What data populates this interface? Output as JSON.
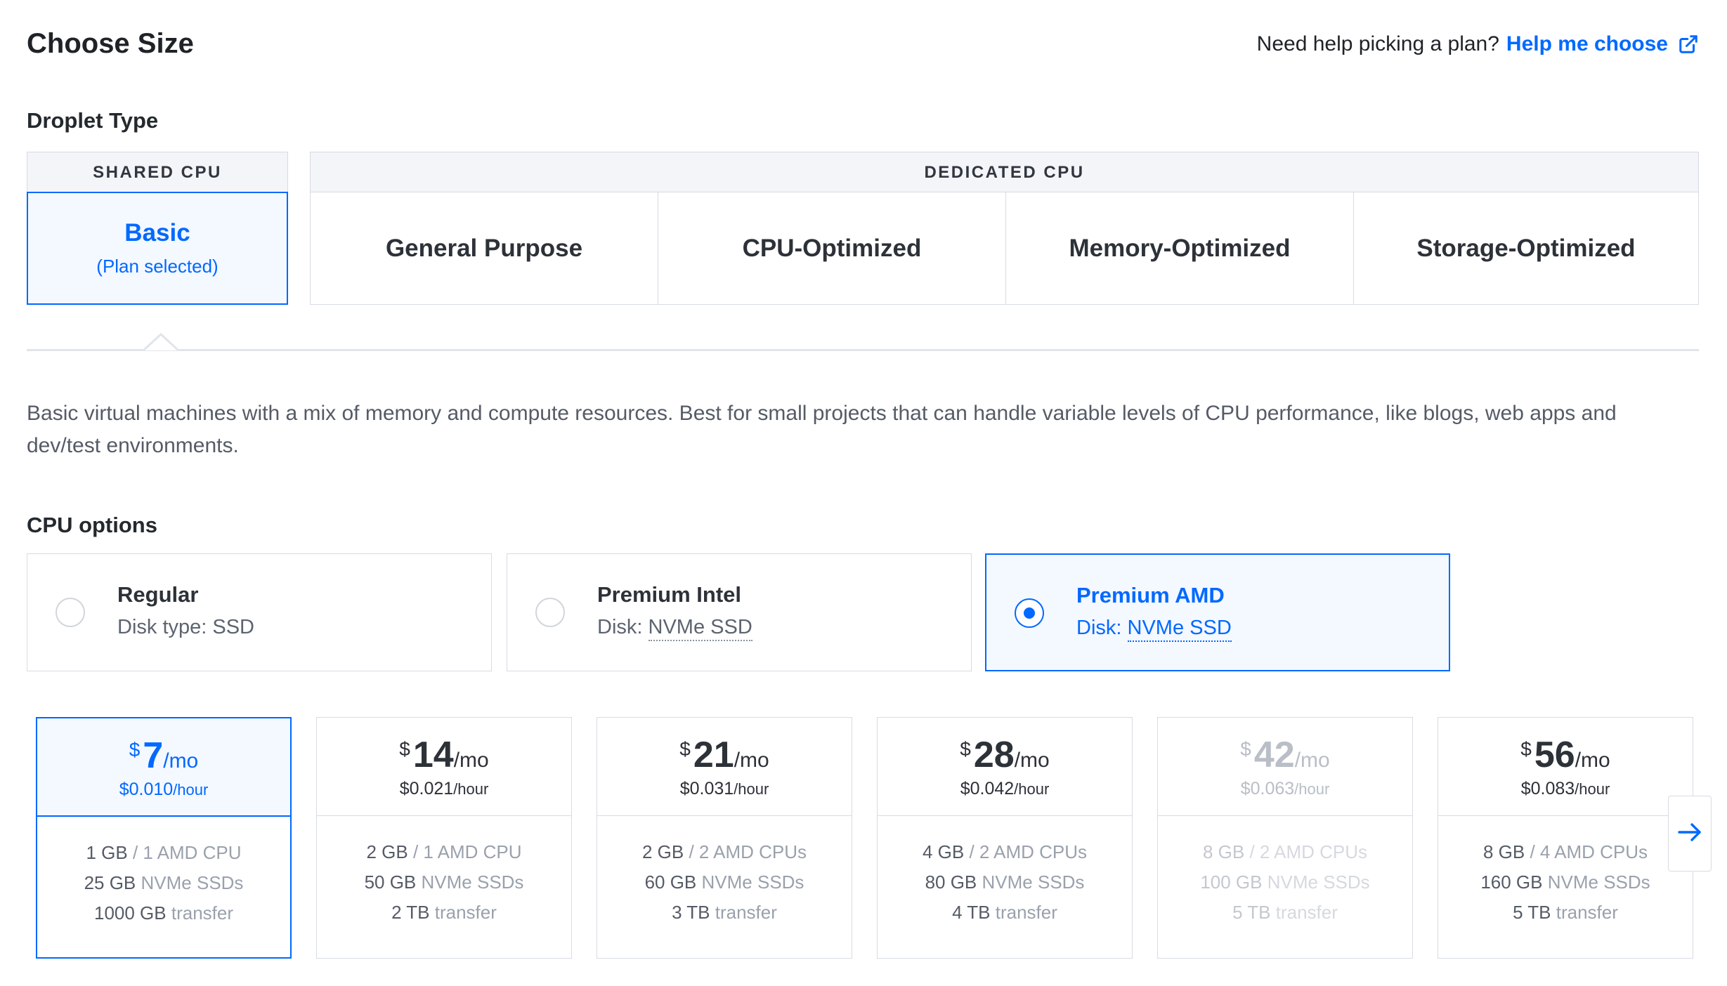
{
  "header": {
    "title": "Choose Size",
    "help_prompt": "Need help picking a plan?",
    "help_link": "Help me choose",
    "help_icon": "external-link-icon"
  },
  "droplet_type": {
    "label": "Droplet Type",
    "groups": {
      "shared": "SHARED CPU",
      "dedicated": "DEDICATED CPU"
    },
    "types": [
      {
        "label": "Basic",
        "sub": "(Plan selected)",
        "selected": true
      },
      {
        "label": "General Purpose"
      },
      {
        "label": "CPU-Optimized"
      },
      {
        "label": "Memory-Optimized"
      },
      {
        "label": "Storage-Optimized"
      }
    ],
    "description": "Basic virtual machines with a mix of memory and compute resources. Best for small projects that can handle variable levels of CPU performance, like blogs, web apps and dev/test environments."
  },
  "cpu_options": {
    "label": "CPU options",
    "options": [
      {
        "name": "Regular",
        "disk_prefix": "Disk type: SSD",
        "disk_link": "",
        "selected": false
      },
      {
        "name": "Premium Intel",
        "disk_prefix": "Disk:",
        "disk_link": "NVMe SSD",
        "selected": false
      },
      {
        "name": "Premium AMD",
        "disk_prefix": "Disk:",
        "disk_link": "NVMe SSD",
        "selected": true
      }
    ]
  },
  "plans": [
    {
      "currency": "$",
      "price": "7",
      "per": "/mo",
      "hourly": "$0.010",
      "hourly_unit": "/hour",
      "mem": "1 GB",
      "cpu": "/ 1 AMD CPU",
      "disk_amt": "25 GB",
      "disk_lbl": "NVMe SSDs",
      "transfer_amt": "1000 GB",
      "transfer_lbl": "transfer",
      "selected": true,
      "disabled": false
    },
    {
      "currency": "$",
      "price": "14",
      "per": "/mo",
      "hourly": "$0.021",
      "hourly_unit": "/hour",
      "mem": "2 GB",
      "cpu": "/ 1 AMD CPU",
      "disk_amt": "50 GB",
      "disk_lbl": "NVMe SSDs",
      "transfer_amt": "2 TB",
      "transfer_lbl": "transfer",
      "selected": false,
      "disabled": false
    },
    {
      "currency": "$",
      "price": "21",
      "per": "/mo",
      "hourly": "$0.031",
      "hourly_unit": "/hour",
      "mem": "2 GB",
      "cpu": "/ 2 AMD CPUs",
      "disk_amt": "60 GB",
      "disk_lbl": "NVMe SSDs",
      "transfer_amt": "3 TB",
      "transfer_lbl": "transfer",
      "selected": false,
      "disabled": false
    },
    {
      "currency": "$",
      "price": "28",
      "per": "/mo",
      "hourly": "$0.042",
      "hourly_unit": "/hour",
      "mem": "4 GB",
      "cpu": "/ 2 AMD CPUs",
      "disk_amt": "80 GB",
      "disk_lbl": "NVMe SSDs",
      "transfer_amt": "4 TB",
      "transfer_lbl": "transfer",
      "selected": false,
      "disabled": false
    },
    {
      "currency": "$",
      "price": "42",
      "per": "/mo",
      "hourly": "$0.063",
      "hourly_unit": "/hour",
      "mem": "8 GB",
      "cpu": "/ 2 AMD CPUs",
      "disk_amt": "100 GB",
      "disk_lbl": "NVMe SSDs",
      "transfer_amt": "5 TB",
      "transfer_lbl": "transfer",
      "selected": false,
      "disabled": true
    },
    {
      "currency": "$",
      "price": "56",
      "per": "/mo",
      "hourly": "$0.083",
      "hourly_unit": "/hour",
      "mem": "8 GB",
      "cpu": "/ 4 AMD CPUs",
      "disk_amt": "160 GB",
      "disk_lbl": "NVMe SSDs",
      "transfer_amt": "5 TB",
      "transfer_lbl": "transfer",
      "selected": false,
      "disabled": false
    }
  ],
  "nav": {
    "next_icon": "arrow-right-icon"
  },
  "colors": {
    "accent": "#0069ff",
    "border": "#d7dbe3",
    "selected_bg": "#f4f8ff"
  }
}
